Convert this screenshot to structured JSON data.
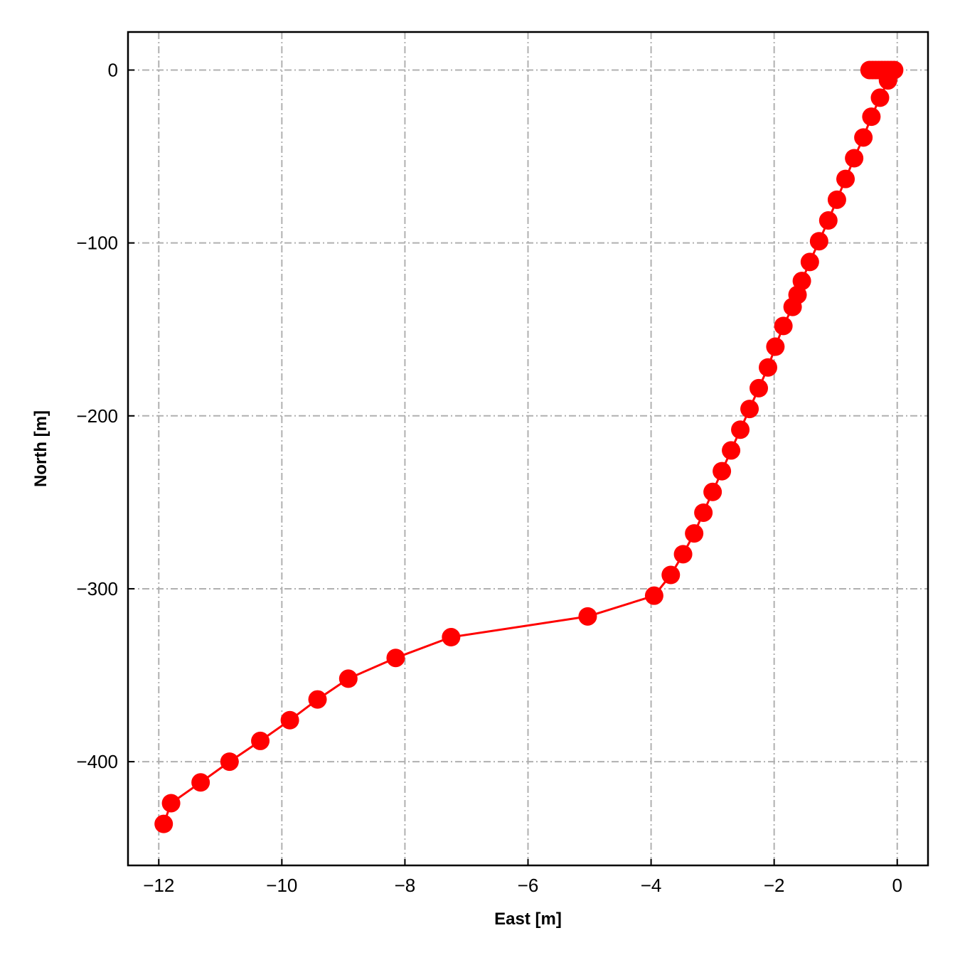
{
  "chart_data": {
    "type": "line",
    "title": "",
    "xlabel": "East [m]",
    "ylabel": "North [m]",
    "xlim": [
      -12.5,
      0.5
    ],
    "ylim": [
      -460,
      22
    ],
    "x_ticks": [
      -12,
      -10,
      -8,
      -6,
      -4,
      -2,
      0
    ],
    "y_ticks": [
      0,
      -100,
      -200,
      -300,
      -400
    ],
    "grid": true,
    "legend": "none",
    "series": [
      {
        "color": "#ff0000",
        "marker": "circle",
        "points": [
          {
            "x": -0.05,
            "y": 0
          },
          {
            "x": -0.1,
            "y": 0
          },
          {
            "x": -0.15,
            "y": 0
          },
          {
            "x": -0.2,
            "y": 0
          },
          {
            "x": -0.25,
            "y": 0
          },
          {
            "x": -0.3,
            "y": 0
          },
          {
            "x": -0.35,
            "y": 0
          },
          {
            "x": -0.4,
            "y": 0
          },
          {
            "x": -0.45,
            "y": 0
          },
          {
            "x": -0.15,
            "y": -6
          },
          {
            "x": -0.28,
            "y": -16
          },
          {
            "x": -0.42,
            "y": -27
          },
          {
            "x": -0.55,
            "y": -39
          },
          {
            "x": -0.7,
            "y": -51
          },
          {
            "x": -0.84,
            "y": -63
          },
          {
            "x": -0.98,
            "y": -75
          },
          {
            "x": -1.12,
            "y": -87
          },
          {
            "x": -1.27,
            "y": -99
          },
          {
            "x": -1.42,
            "y": -111
          },
          {
            "x": -1.55,
            "y": -122
          },
          {
            "x": -1.62,
            "y": -130
          },
          {
            "x": -1.7,
            "y": -137
          },
          {
            "x": -1.85,
            "y": -148
          },
          {
            "x": -1.98,
            "y": -160
          },
          {
            "x": -2.1,
            "y": -172
          },
          {
            "x": -2.25,
            "y": -184
          },
          {
            "x": -2.4,
            "y": -196
          },
          {
            "x": -2.55,
            "y": -208
          },
          {
            "x": -2.7,
            "y": -220
          },
          {
            "x": -2.85,
            "y": -232
          },
          {
            "x": -3.0,
            "y": -244
          },
          {
            "x": -3.15,
            "y": -256
          },
          {
            "x": -3.3,
            "y": -268
          },
          {
            "x": -3.48,
            "y": -280
          },
          {
            "x": -3.68,
            "y": -292
          },
          {
            "x": -3.95,
            "y": -304
          },
          {
            "x": -5.03,
            "y": -316
          },
          {
            "x": -7.25,
            "y": -328
          },
          {
            "x": -8.15,
            "y": -340
          },
          {
            "x": -8.92,
            "y": -352
          },
          {
            "x": -9.42,
            "y": -364
          },
          {
            "x": -9.87,
            "y": -376
          },
          {
            "x": -10.35,
            "y": -388
          },
          {
            "x": -10.85,
            "y": -400
          },
          {
            "x": -11.32,
            "y": -412
          },
          {
            "x": -11.8,
            "y": -424
          },
          {
            "x": -11.92,
            "y": -436
          }
        ]
      }
    ]
  }
}
